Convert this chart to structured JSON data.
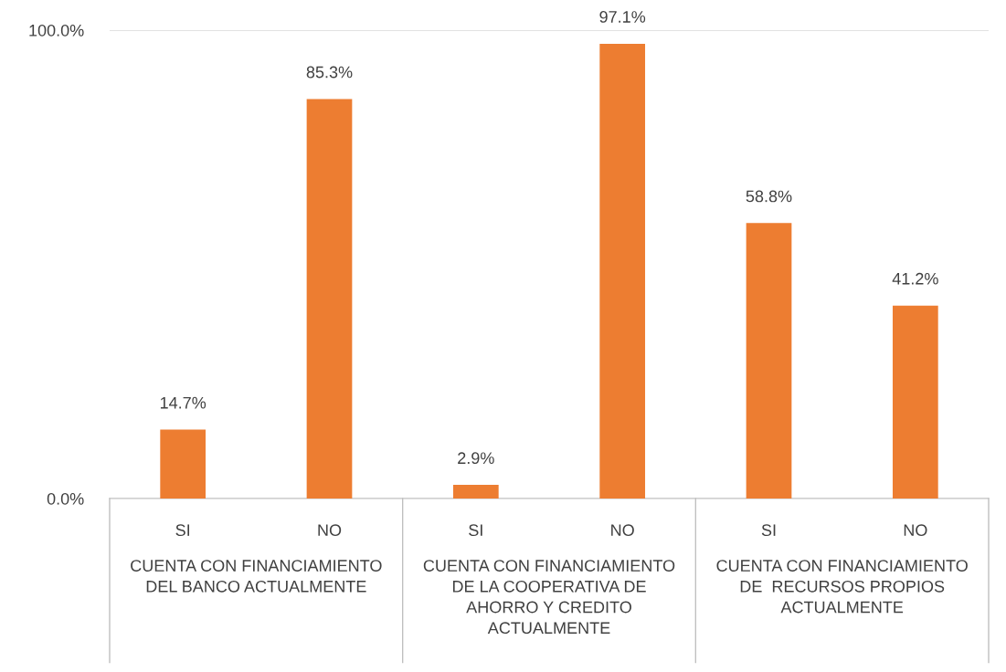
{
  "chart_data": {
    "type": "bar",
    "categories": [
      "SI",
      "NO",
      "SI",
      "NO",
      "SI",
      "NO"
    ],
    "values": [
      14.7,
      85.3,
      2.9,
      97.1,
      58.8,
      41.2
    ],
    "value_labels": [
      "14.7%",
      "85.3%",
      "2.9%",
      "97.1%",
      "58.8%",
      "41.2%"
    ],
    "color": "#ed7d31",
    "ylim": [
      0,
      100
    ],
    "yticks": [
      {
        "value": 0,
        "label": "0.0%"
      },
      {
        "value": 100,
        "label": "100.0%"
      }
    ],
    "grid": "y",
    "annotations": [
      "CUENTA CON FINANCIAMIENTO\nDEL BANCO ACTUALMENTE",
      "CUENTA CON FINANCIAMIENTO\nDE LA COOPERATIVA DE\nAHORRO Y CREDITO\nACTUALMENTE",
      "CUENTA CON FINANCIAMIENTO\nDE  RECURSOS PROPIOS\nACTUALMENTE"
    ]
  }
}
